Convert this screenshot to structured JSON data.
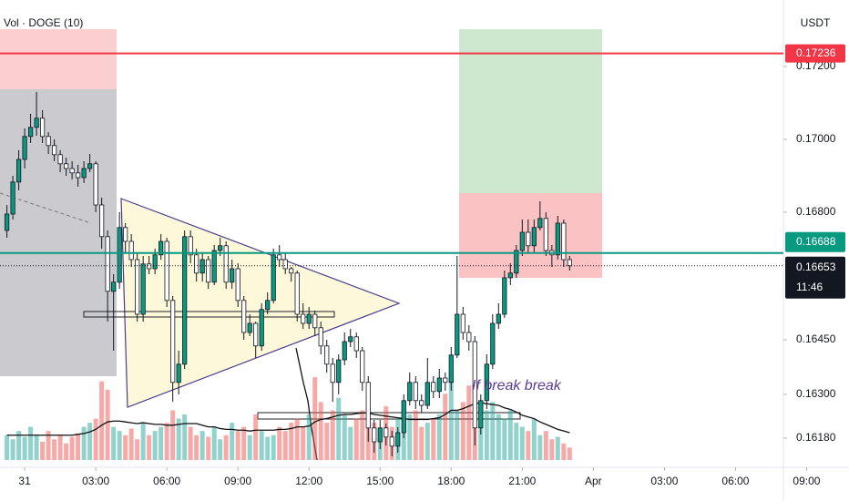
{
  "chart_data": {
    "type": "candlestick",
    "indicator_label": "Vol · DOGE (10)",
    "currency": "USDT",
    "annotation": "If break break",
    "up_color": "#089981",
    "down_color": "#ffffff",
    "x": [
      -0.75,
      -0.5,
      -0.25,
      0,
      0.25,
      0.5,
      0.75,
      1,
      1.25,
      1.5,
      1.75,
      2,
      2.25,
      2.5,
      2.75,
      3,
      3.25,
      3.5,
      3.75,
      4,
      4.25,
      4.5,
      4.75,
      5,
      5.25,
      5.5,
      5.75,
      6,
      6.25,
      6.5,
      6.75,
      7,
      7.25,
      7.5,
      7.75,
      8,
      8.25,
      8.5,
      8.75,
      9,
      9.25,
      9.5,
      9.75,
      10,
      10.25,
      10.5,
      10.75,
      11,
      11.25,
      11.5,
      11.75,
      12,
      12.25,
      12.5,
      12.75,
      13,
      13.25,
      13.5,
      13.75,
      14,
      14.25,
      14.5,
      14.75,
      15,
      15.25,
      15.5,
      15.75,
      16,
      16.25,
      16.5,
      16.75,
      17,
      17.25,
      17.5,
      17.75,
      18,
      18.25,
      18.5,
      18.75,
      19,
      19.25,
      19.5,
      19.75,
      20,
      20.25,
      20.5,
      20.75,
      21,
      21.25,
      21.5,
      21.75,
      22,
      22.25,
      22.5,
      22.75,
      23
    ],
    "open": [
      0.1675,
      0.16795,
      0.16883,
      0.16945,
      0.17008,
      0.17033,
      0.17058,
      0.17008,
      0.16983,
      0.16958,
      0.16933,
      0.1692,
      0.16908,
      0.16895,
      0.1692,
      0.16933,
      0.1682,
      0.16733,
      0.16583,
      0.16608,
      0.16758,
      0.1672,
      0.1667,
      0.1652,
      0.16658,
      0.16645,
      0.16683,
      0.1672,
      0.16558,
      0.16333,
      0.16383,
      0.16733,
      0.16683,
      0.16633,
      0.1667,
      0.16608,
      0.16695,
      0.16708,
      0.16608,
      0.16645,
      0.16558,
      0.1647,
      0.16495,
      0.16433,
      0.16533,
      0.16558,
      0.16683,
      0.1667,
      0.16645,
      0.16633,
      0.1652,
      0.16495,
      0.1652,
      0.16483,
      0.16433,
      0.16383,
      0.16333,
      0.16395,
      0.16445,
      0.16458,
      0.1642,
      0.16333,
      0.16208,
      0.1617,
      0.16208,
      0.16183,
      0.16158,
      0.16195,
      0.16283,
      0.16333,
      0.16283,
      0.1627,
      0.16333,
      0.16308,
      0.16345,
      0.16333,
      0.16408,
      0.1652,
      0.1647,
      0.16445,
      0.16208,
      0.16283,
      0.16383,
      0.16495,
      0.1652,
      0.1662,
      0.16633,
      0.16695,
      0.16745,
      0.16708,
      0.16758,
      0.16783,
      0.16695,
      0.16683,
      0.1677,
      0.1667
    ],
    "high": [
      0.1682,
      0.169,
      0.1697,
      0.1703,
      0.1707,
      0.1713,
      0.1708,
      0.1702,
      0.17,
      0.1697,
      0.1695,
      0.1694,
      0.1693,
      0.1694,
      0.1696,
      0.1694,
      0.1684,
      0.1675,
      0.1663,
      0.168,
      0.1677,
      0.1674,
      0.1669,
      0.1668,
      0.1668,
      0.167,
      0.1674,
      0.1673,
      0.1657,
      0.1642,
      0.1675,
      0.1675,
      0.167,
      0.1669,
      0.1668,
      0.1671,
      0.1673,
      0.1672,
      0.1667,
      0.1666,
      0.1657,
      0.1652,
      0.165,
      0.1655,
      0.1658,
      0.167,
      0.1671,
      0.1669,
      0.1665,
      0.1664,
      0.1655,
      0.1654,
      0.1653,
      0.165,
      0.1645,
      0.164,
      0.1641,
      0.1647,
      0.1648,
      0.1647,
      0.1643,
      0.1635,
      0.1623,
      0.1623,
      0.1622,
      0.162,
      0.1621,
      0.163,
      0.1636,
      0.1635,
      0.163,
      0.164,
      0.1635,
      0.1637,
      0.1636,
      0.1643,
      0.1668,
      0.1654,
      0.1649,
      0.1646,
      0.163,
      0.1641,
      0.1652,
      0.1655,
      0.1664,
      0.1666,
      0.1671,
      0.1678,
      0.1678,
      0.1678,
      0.1683,
      0.168,
      0.1671,
      0.1679,
      0.1678,
      0.1668
    ],
    "low": [
      0.1673,
      0.1678,
      0.1686,
      0.1692,
      0.1699,
      0.1701,
      0.1699,
      0.1696,
      0.1694,
      0.1691,
      0.169,
      0.1689,
      0.1687,
      0.1688,
      0.1691,
      0.168,
      0.167,
      0.165,
      0.1642,
      0.1659,
      0.1669,
      0.1665,
      0.165,
      0.165,
      0.1663,
      0.1663,
      0.1667,
      0.1654,
      0.1628,
      0.163,
      0.1637,
      0.1666,
      0.1661,
      0.1661,
      0.1659,
      0.166,
      0.1668,
      0.1659,
      0.1659,
      0.1654,
      0.1645,
      0.1646,
      0.164,
      0.1642,
      0.1652,
      0.1655,
      0.1665,
      0.1663,
      0.1661,
      0.165,
      0.1648,
      0.1648,
      0.1646,
      0.1641,
      0.1636,
      0.1628,
      0.163,
      0.1638,
      0.1643,
      0.164,
      0.1631,
      0.1617,
      0.1614,
      0.1615,
      0.1616,
      0.1613,
      0.1614,
      0.1618,
      0.1627,
      0.1626,
      0.1625,
      0.1626,
      0.1629,
      0.1629,
      0.1631,
      0.1631,
      0.164,
      0.1645,
      0.1642,
      0.1616,
      0.1619,
      0.1626,
      0.1637,
      0.1648,
      0.1651,
      0.166,
      0.1662,
      0.1668,
      0.1669,
      0.1669,
      0.1675,
      0.1668,
      0.1665,
      0.1667,
      0.1665,
      0.1664
    ],
    "close": [
      0.16795,
      0.16883,
      0.16945,
      0.17008,
      0.17033,
      0.17058,
      0.17008,
      0.16983,
      0.16958,
      0.16933,
      0.1692,
      0.16908,
      0.16895,
      0.1692,
      0.16933,
      0.1682,
      0.16733,
      0.16583,
      0.16608,
      0.16758,
      0.1672,
      0.1667,
      0.1652,
      0.16658,
      0.16645,
      0.16683,
      0.1672,
      0.16558,
      0.16333,
      0.16383,
      0.16733,
      0.16683,
      0.16633,
      0.1667,
      0.16608,
      0.16695,
      0.16708,
      0.16608,
      0.16645,
      0.16558,
      0.1647,
      0.16495,
      0.16433,
      0.16533,
      0.16558,
      0.16683,
      0.1667,
      0.16645,
      0.16633,
      0.1652,
      0.16495,
      0.1652,
      0.16483,
      0.16433,
      0.16383,
      0.16333,
      0.16395,
      0.16445,
      0.16458,
      0.1642,
      0.16333,
      0.16208,
      0.1617,
      0.16208,
      0.16183,
      0.16158,
      0.16195,
      0.16283,
      0.16333,
      0.16283,
      0.1627,
      0.16333,
      0.16308,
      0.16345,
      0.16333,
      0.16408,
      0.1652,
      0.1647,
      0.16445,
      0.16208,
      0.16283,
      0.16383,
      0.16495,
      0.1652,
      0.1662,
      0.16633,
      0.16695,
      0.16745,
      0.16708,
      0.16758,
      0.16783,
      0.16695,
      0.16683,
      0.1677,
      0.1667,
      0.16653
    ],
    "volume": [
      30,
      25,
      35,
      28,
      40,
      30,
      22,
      35,
      25,
      30,
      20,
      28,
      32,
      40,
      45,
      50,
      95,
      85,
      40,
      35,
      30,
      38,
      25,
      45,
      30,
      35,
      40,
      45,
      60,
      50,
      55,
      40,
      30,
      35,
      28,
      40,
      25,
      30,
      45,
      35,
      40,
      30,
      55,
      35,
      28,
      30,
      40,
      35,
      45,
      50,
      40,
      55,
      100,
      70,
      45,
      60,
      75,
      55,
      40,
      50,
      60,
      55,
      45,
      35,
      65,
      40,
      50,
      45,
      55,
      60,
      40,
      45,
      50,
      55,
      80,
      100,
      60,
      70,
      90,
      85,
      65,
      60,
      70,
      55,
      50,
      60,
      45,
      40,
      35,
      50,
      30,
      35,
      25,
      28,
      20,
      15
    ],
    "volume_ma": [
      30,
      30,
      30,
      30,
      30,
      30,
      30,
      30,
      30,
      30,
      30,
      30,
      31,
      32,
      34,
      37,
      42,
      46,
      47,
      47,
      46,
      45,
      44,
      45,
      44,
      43,
      43,
      42,
      42,
      43,
      44,
      44,
      44,
      42,
      40,
      40,
      38,
      37,
      37,
      36,
      36,
      35,
      36,
      36,
      36,
      36,
      37,
      37,
      38,
      40,
      40,
      41,
      46,
      49,
      50,
      52,
      54,
      55,
      55,
      56,
      57,
      57,
      55,
      54,
      53,
      52,
      51,
      50,
      49,
      49,
      49,
      49,
      50,
      51,
      55,
      60,
      60,
      62,
      65,
      68,
      69,
      68,
      67,
      66,
      63,
      61,
      58,
      54,
      52,
      50,
      46,
      43,
      40,
      37,
      35,
      33
    ],
    "volume_lim": [
      0,
      110
    ],
    "ylim": [
      0.161,
      0.173825
    ],
    "yticks": [
      {
        "value": 0.172,
        "label": "0.17200"
      },
      {
        "value": 0.17,
        "label": "0.17000"
      },
      {
        "value": 0.168,
        "label": "0.16800"
      },
      {
        "value": 0.1645,
        "label": "0.16450"
      },
      {
        "value": 0.163,
        "label": "0.16300"
      },
      {
        "value": 0.1618,
        "label": "0.16180"
      }
    ],
    "xlim": [
      -1.0417,
      34.79
    ],
    "xticks": [
      {
        "value": 0,
        "label": "31"
      },
      {
        "value": 3,
        "label": "03:00"
      },
      {
        "value": 6,
        "label": "06:00"
      },
      {
        "value": 9,
        "label": "09:00"
      },
      {
        "value": 12,
        "label": "12:00"
      },
      {
        "value": 15,
        "label": "15:00"
      },
      {
        "value": 18,
        "label": "18:00"
      },
      {
        "value": 21,
        "label": "21:00"
      },
      {
        "value": 24,
        "label": "Apr"
      },
      {
        "value": 27,
        "label": "03:00"
      },
      {
        "value": 30,
        "label": "06:00"
      },
      {
        "value": 33,
        "label": "09:00"
      }
    ],
    "price_lines": [
      {
        "value": 0.17236,
        "color": "#f23645"
      },
      {
        "value": 0.16688,
        "color": "#089981"
      }
    ],
    "last_price": {
      "value": 0.16653,
      "countdown": "11:46"
    }
  }
}
